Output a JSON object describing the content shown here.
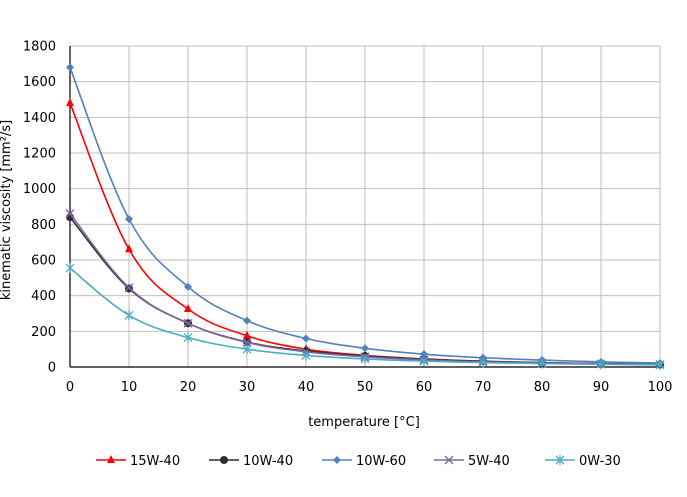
{
  "chart_data": {
    "type": "line",
    "title": "",
    "xlabel": "temperature [°C]",
    "ylabel": "kinematic viscosity [mm²/s]",
    "x": [
      0,
      10,
      20,
      30,
      40,
      50,
      60,
      70,
      80,
      90,
      100
    ],
    "xlim": [
      0,
      100
    ],
    "ylim": [
      0,
      1800
    ],
    "xticks": [
      "0",
      "10",
      "20",
      "30",
      "40",
      "50",
      "60",
      "70",
      "80",
      "90",
      "100"
    ],
    "yticks": [
      "0",
      "200",
      "400",
      "600",
      "800",
      "1000",
      "1200",
      "1400",
      "1600",
      "1800"
    ],
    "grid": true,
    "legend_position": "bottom",
    "series": [
      {
        "name": "15W-40",
        "marker": "triangle",
        "color": "#ff0000",
        "values": [
          1480,
          660,
          325,
          175,
          100,
          65,
          45,
          32,
          24,
          19,
          15
        ]
      },
      {
        "name": "10W-40",
        "marker": "circle",
        "color": "#2f2f2f",
        "values": [
          840,
          440,
          245,
          140,
          90,
          62,
          44,
          32,
          24,
          18,
          14
        ]
      },
      {
        "name": "10W-60",
        "marker": "diamond",
        "color": "#4f81bd",
        "values": [
          1680,
          830,
          450,
          260,
          160,
          105,
          72,
          52,
          39,
          29,
          22
        ]
      },
      {
        "name": "5W-40",
        "marker": "x",
        "color": "#8064a2",
        "values": [
          860,
          445,
          245,
          138,
          85,
          57,
          40,
          29,
          22,
          17,
          13
        ]
      },
      {
        "name": "0W-30",
        "marker": "star",
        "color": "#4bacc6",
        "values": [
          555,
          290,
          165,
          100,
          65,
          45,
          33,
          25,
          19,
          15,
          12
        ]
      }
    ]
  }
}
